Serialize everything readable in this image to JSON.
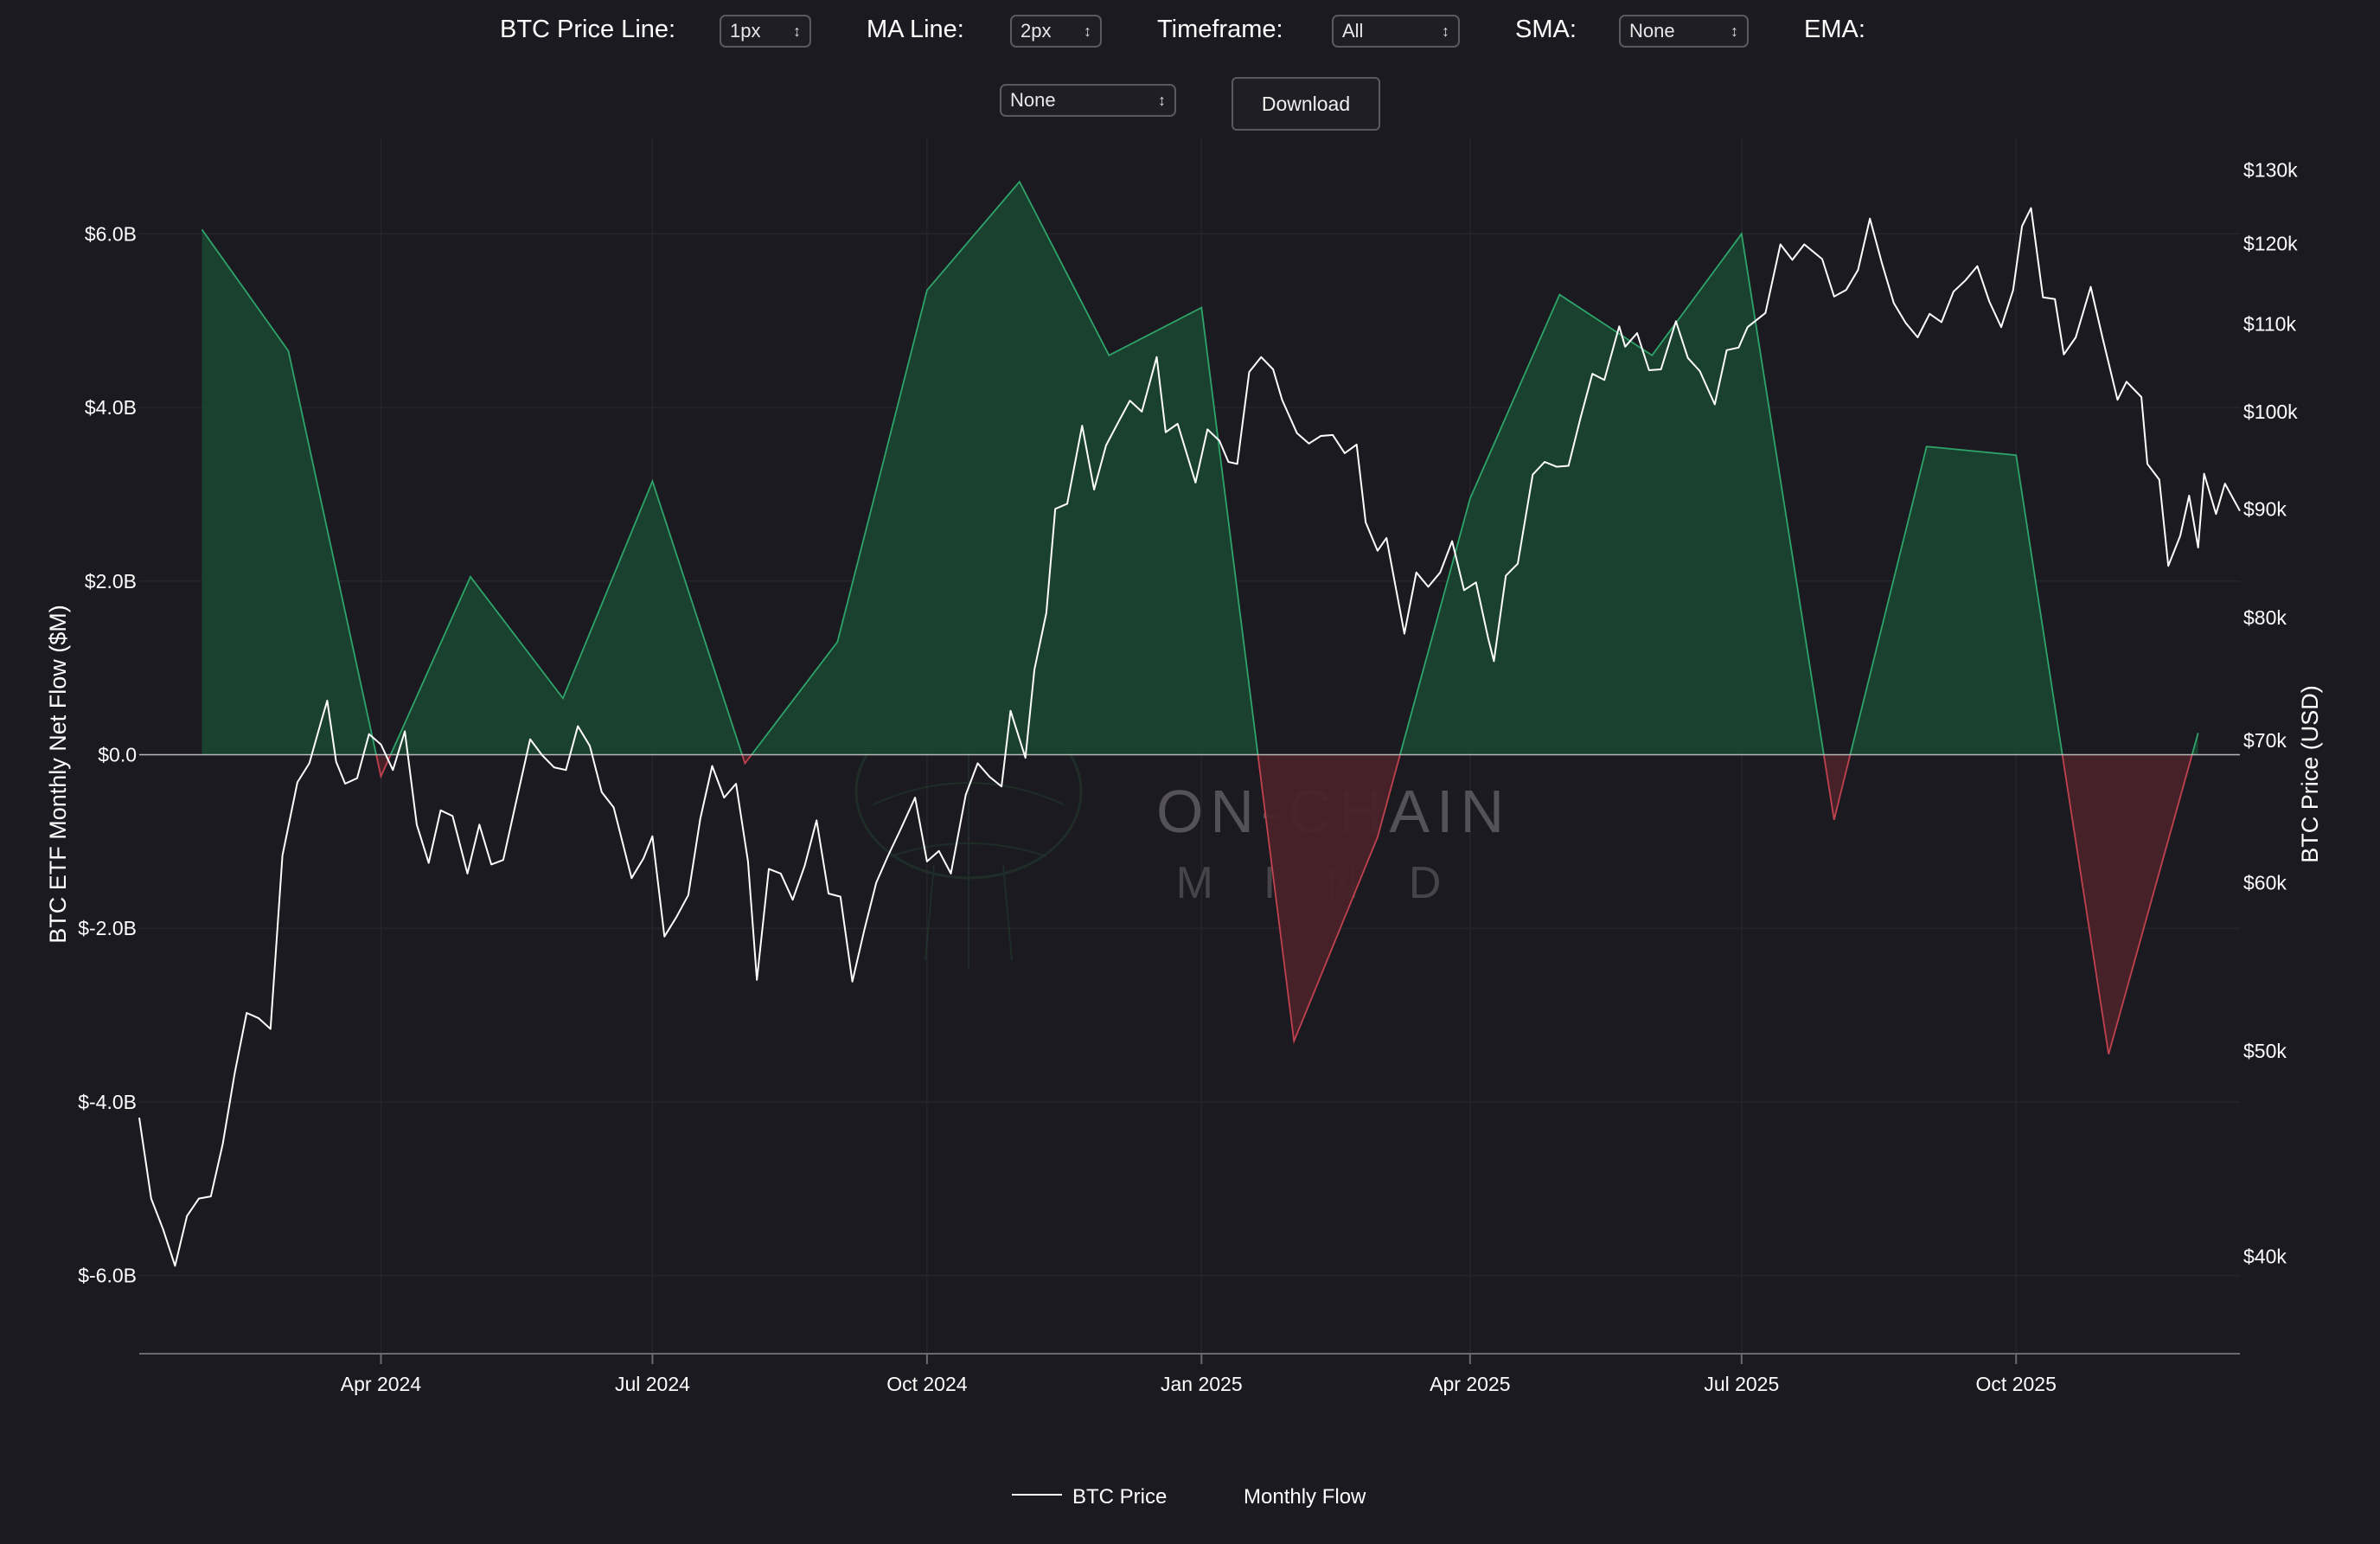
{
  "controls": {
    "btc_price_line": {
      "label": "BTC Price Line:",
      "value": "1px"
    },
    "ma_line": {
      "label": "MA Line:",
      "value": "2px"
    },
    "timeframe": {
      "label": "Timeframe:",
      "value": "All"
    },
    "sma": {
      "label": "SMA:",
      "value": "None"
    },
    "ema": {
      "label": "EMA:",
      "value": "None"
    },
    "download_label": "Download"
  },
  "watermark": {
    "line1": "ON-CHAIN",
    "line2": "MIND"
  },
  "colors": {
    "background": "#1b1a20",
    "positive_fill": "#1a4330",
    "positive_line": "#2ea46a",
    "negative_fill": "#4a2229",
    "negative_line": "#c0424f",
    "price_line": "#ffffff",
    "zero_line": "#b8b8b8"
  },
  "chart_data": {
    "type": "area+line",
    "ylabel_left": "BTC ETF Monthly Net Flow ($M)",
    "ylabel_right": "BTC Price (USD)",
    "left_axis": {
      "range": [
        -6.9,
        6.9
      ],
      "ticks": [
        6,
        4,
        2,
        0,
        -2,
        -4,
        -6
      ],
      "tick_labels": [
        "$6.0B",
        "$4.0B",
        "$2.0B",
        "$0.0",
        "$-2.0B",
        "$-4.0B",
        "$-6.0B"
      ]
    },
    "right_axis": {
      "scale": "log",
      "range": [
        36000,
        132000
      ],
      "ticks": [
        130000,
        120000,
        110000,
        100000,
        90000,
        80000,
        70000,
        60000,
        50000,
        40000
      ],
      "tick_labels": [
        "$130k",
        "$120k",
        "$110k",
        "$100k",
        "$90k",
        "$80k",
        "$70k",
        "$60k",
        "$50k",
        "$40k"
      ]
    },
    "x_axis": {
      "range": [
        "2024-01-11",
        "2025-12-15"
      ],
      "ticks": [
        "2024-04-01",
        "2024-07-01",
        "2024-10-01",
        "2025-01-01",
        "2025-04-01",
        "2025-07-01",
        "2025-10-01"
      ],
      "tick_labels": [
        "Apr 2024",
        "Jul 2024",
        "Oct 2024",
        "Jan 2025",
        "Apr 2025",
        "Jul 2025",
        "Oct 2025"
      ]
    },
    "legend": {
      "position": "bottom-center",
      "entries": [
        "BTC Price",
        "Monthly Flow"
      ]
    },
    "series": [
      {
        "name": "Monthly Flow",
        "unit": "$B",
        "points": [
          [
            "2024-02-01",
            6.05
          ],
          [
            "2024-03-01",
            4.65
          ],
          [
            "2024-04-01",
            -0.25
          ],
          [
            "2024-05-01",
            2.05
          ],
          [
            "2024-06-01",
            0.65
          ],
          [
            "2024-07-01",
            3.15
          ],
          [
            "2024-08-01",
            -0.1
          ],
          [
            "2024-09-01",
            1.3
          ],
          [
            "2024-10-01",
            5.35
          ],
          [
            "2024-11-01",
            6.6
          ],
          [
            "2024-12-01",
            4.6
          ],
          [
            "2025-01-01",
            5.15
          ],
          [
            "2025-02-01",
            -3.3
          ],
          [
            "2025-03-01",
            -0.95
          ],
          [
            "2025-04-01",
            2.95
          ],
          [
            "2025-05-01",
            5.3
          ],
          [
            "2025-06-01",
            4.6
          ],
          [
            "2025-07-01",
            6.0
          ],
          [
            "2025-08-01",
            -0.75
          ],
          [
            "2025-09-01",
            3.55
          ],
          [
            "2025-10-01",
            3.45
          ],
          [
            "2025-11-01",
            -3.45
          ],
          [
            "2025-12-01",
            0.25
          ]
        ]
      },
      {
        "name": "BTC Price",
        "unit": "USD",
        "points": [
          [
            "2024-01-11",
            46500
          ],
          [
            "2024-01-15",
            42600
          ],
          [
            "2024-01-19",
            41200
          ],
          [
            "2024-01-23",
            39600
          ],
          [
            "2024-01-27",
            41800
          ],
          [
            "2024-01-31",
            42600
          ],
          [
            "2024-02-04",
            42700
          ],
          [
            "2024-02-08",
            45200
          ],
          [
            "2024-02-12",
            48800
          ],
          [
            "2024-02-16",
            52100
          ],
          [
            "2024-02-20",
            51800
          ],
          [
            "2024-02-24",
            51200
          ],
          [
            "2024-02-28",
            61800
          ],
          [
            "2024-03-04",
            66900
          ],
          [
            "2024-03-08",
            68300
          ],
          [
            "2024-03-12",
            71500
          ],
          [
            "2024-03-14",
            73100
          ],
          [
            "2024-03-17",
            68400
          ],
          [
            "2024-03-20",
            66800
          ],
          [
            "2024-03-24",
            67200
          ],
          [
            "2024-03-28",
            70500
          ],
          [
            "2024-04-01",
            69700
          ],
          [
            "2024-04-05",
            67800
          ],
          [
            "2024-04-09",
            70700
          ],
          [
            "2024-04-13",
            63900
          ],
          [
            "2024-04-17",
            61300
          ],
          [
            "2024-04-21",
            64900
          ],
          [
            "2024-04-25",
            64500
          ],
          [
            "2024-04-30",
            60600
          ],
          [
            "2024-05-04",
            63900
          ],
          [
            "2024-05-08",
            61200
          ],
          [
            "2024-05-12",
            61500
          ],
          [
            "2024-05-16",
            65200
          ],
          [
            "2024-05-21",
            70100
          ],
          [
            "2024-05-25",
            68900
          ],
          [
            "2024-05-29",
            68000
          ],
          [
            "2024-06-02",
            67800
          ],
          [
            "2024-06-06",
            71100
          ],
          [
            "2024-06-10",
            69600
          ],
          [
            "2024-06-14",
            66200
          ],
          [
            "2024-06-18",
            65100
          ],
          [
            "2024-06-24",
            60300
          ],
          [
            "2024-06-28",
            61600
          ],
          [
            "2024-07-01",
            63100
          ],
          [
            "2024-07-05",
            56600
          ],
          [
            "2024-07-09",
            57800
          ],
          [
            "2024-07-13",
            59200
          ],
          [
            "2024-07-17",
            64300
          ],
          [
            "2024-07-21",
            68100
          ],
          [
            "2024-07-25",
            65800
          ],
          [
            "2024-07-29",
            66800
          ],
          [
            "2024-08-02",
            61400
          ],
          [
            "2024-08-05",
            54000
          ],
          [
            "2024-08-09",
            60900
          ],
          [
            "2024-08-13",
            60600
          ],
          [
            "2024-08-17",
            58900
          ],
          [
            "2024-08-21",
            61100
          ],
          [
            "2024-08-25",
            64200
          ],
          [
            "2024-08-29",
            59300
          ],
          [
            "2024-09-02",
            59100
          ],
          [
            "2024-09-06",
            53900
          ],
          [
            "2024-09-10",
            57000
          ],
          [
            "2024-09-14",
            60000
          ],
          [
            "2024-09-18",
            61800
          ],
          [
            "2024-09-22",
            63500
          ],
          [
            "2024-09-27",
            65800
          ],
          [
            "2024-10-01",
            61400
          ],
          [
            "2024-10-05",
            62100
          ],
          [
            "2024-10-09",
            60600
          ],
          [
            "2024-10-14",
            66000
          ],
          [
            "2024-10-18",
            68300
          ],
          [
            "2024-10-22",
            67300
          ],
          [
            "2024-10-26",
            66600
          ],
          [
            "2024-10-29",
            72300
          ],
          [
            "2024-11-03",
            68700
          ],
          [
            "2024-11-06",
            75600
          ],
          [
            "2024-11-10",
            80400
          ],
          [
            "2024-11-13",
            90000
          ],
          [
            "2024-11-17",
            90500
          ],
          [
            "2024-11-22",
            98500
          ],
          [
            "2024-11-26",
            91900
          ],
          [
            "2024-11-30",
            96400
          ],
          [
            "2024-12-04",
            98800
          ],
          [
            "2024-12-08",
            101200
          ],
          [
            "2024-12-12",
            100000
          ],
          [
            "2024-12-17",
            106100
          ],
          [
            "2024-12-20",
            97800
          ],
          [
            "2024-12-24",
            98700
          ],
          [
            "2024-12-30",
            92600
          ],
          [
            "2025-01-03",
            98100
          ],
          [
            "2025-01-07",
            96900
          ],
          [
            "2025-01-10",
            94700
          ],
          [
            "2025-01-13",
            94500
          ],
          [
            "2025-01-17",
            104400
          ],
          [
            "2025-01-21",
            106100
          ],
          [
            "2025-01-25",
            104700
          ],
          [
            "2025-01-28",
            101300
          ],
          [
            "2025-02-02",
            97700
          ],
          [
            "2025-02-06",
            96600
          ],
          [
            "2025-02-10",
            97400
          ],
          [
            "2025-02-14",
            97500
          ],
          [
            "2025-02-18",
            95600
          ],
          [
            "2025-02-22",
            96500
          ],
          [
            "2025-02-25",
            88700
          ],
          [
            "2025-03-01",
            86000
          ],
          [
            "2025-03-04",
            87200
          ],
          [
            "2025-03-10",
            78600
          ],
          [
            "2025-03-14",
            84000
          ],
          [
            "2025-03-18",
            82700
          ],
          [
            "2025-03-22",
            84000
          ],
          [
            "2025-03-26",
            86900
          ],
          [
            "2025-03-30",
            82400
          ],
          [
            "2025-04-03",
            83100
          ],
          [
            "2025-04-07",
            78300
          ],
          [
            "2025-04-09",
            76300
          ],
          [
            "2025-04-13",
            83700
          ],
          [
            "2025-04-17",
            84800
          ],
          [
            "2025-04-22",
            93400
          ],
          [
            "2025-04-26",
            94700
          ],
          [
            "2025-04-30",
            94200
          ],
          [
            "2025-05-04",
            94300
          ],
          [
            "2025-05-08",
            99300
          ],
          [
            "2025-05-12",
            104200
          ],
          [
            "2025-05-16",
            103500
          ],
          [
            "2025-05-21",
            109700
          ],
          [
            "2025-05-23",
            107300
          ],
          [
            "2025-05-27",
            108900
          ],
          [
            "2025-05-31",
            104600
          ],
          [
            "2025-06-04",
            104700
          ],
          [
            "2025-06-09",
            110300
          ],
          [
            "2025-06-13",
            106000
          ],
          [
            "2025-06-17",
            104500
          ],
          [
            "2025-06-22",
            100800
          ],
          [
            "2025-06-26",
            106900
          ],
          [
            "2025-06-30",
            107200
          ],
          [
            "2025-07-03",
            109600
          ],
          [
            "2025-07-09",
            111300
          ],
          [
            "2025-07-14",
            119900
          ],
          [
            "2025-07-18",
            117900
          ],
          [
            "2025-07-22",
            119900
          ],
          [
            "2025-07-28",
            118000
          ],
          [
            "2025-08-01",
            113300
          ],
          [
            "2025-08-05",
            114100
          ],
          [
            "2025-08-09",
            116600
          ],
          [
            "2025-08-13",
            123300
          ],
          [
            "2025-08-17",
            117500
          ],
          [
            "2025-08-21",
            112500
          ],
          [
            "2025-08-25",
            110100
          ],
          [
            "2025-08-29",
            108400
          ],
          [
            "2025-09-02",
            111200
          ],
          [
            "2025-09-06",
            110200
          ],
          [
            "2025-09-10",
            113900
          ],
          [
            "2025-09-14",
            115300
          ],
          [
            "2025-09-18",
            117100
          ],
          [
            "2025-09-22",
            112700
          ],
          [
            "2025-09-26",
            109600
          ],
          [
            "2025-09-30",
            114100
          ],
          [
            "2025-10-03",
            122300
          ],
          [
            "2025-10-06",
            124700
          ],
          [
            "2025-10-10",
            113200
          ],
          [
            "2025-10-14",
            113000
          ],
          [
            "2025-10-17",
            106400
          ],
          [
            "2025-10-21",
            108400
          ],
          [
            "2025-10-26",
            114500
          ],
          [
            "2025-10-30",
            108300
          ],
          [
            "2025-11-04",
            101300
          ],
          [
            "2025-11-07",
            103300
          ],
          [
            "2025-11-12",
            101600
          ],
          [
            "2025-11-14",
            94500
          ],
          [
            "2025-11-18",
            92900
          ],
          [
            "2025-11-21",
            84600
          ],
          [
            "2025-11-25",
            87400
          ],
          [
            "2025-11-28",
            91300
          ],
          [
            "2025-12-01",
            86300
          ],
          [
            "2025-12-03",
            93500
          ],
          [
            "2025-12-07",
            89500
          ],
          [
            "2025-12-10",
            92500
          ],
          [
            "2025-12-15",
            89800
          ]
        ]
      }
    ]
  }
}
